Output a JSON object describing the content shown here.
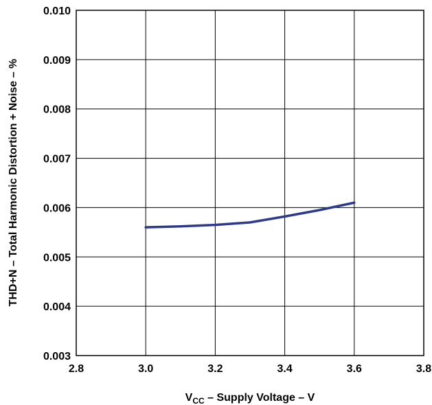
{
  "chart_data": {
    "type": "line",
    "title": "",
    "xlabel": {
      "main": "V",
      "sub": "CC",
      "rest": " – Supply Voltage – V"
    },
    "ylabel": "THD+N – Total Harmonic Distortion + Noise – %",
    "xlim": [
      2.8,
      3.8
    ],
    "ylim": [
      0.003,
      0.01
    ],
    "x_ticks": [
      "2.8",
      "3.0",
      "3.2",
      "3.4",
      "3.6",
      "3.8"
    ],
    "y_ticks": [
      "0.003",
      "0.004",
      "0.005",
      "0.006",
      "0.007",
      "0.008",
      "0.009",
      "0.010"
    ],
    "grid": true,
    "series": [
      {
        "color": "#2b3a8c",
        "x": [
          3.0,
          3.1,
          3.2,
          3.3,
          3.4,
          3.5,
          3.6
        ],
        "y": [
          0.0056,
          0.00562,
          0.00565,
          0.0057,
          0.00582,
          0.00595,
          0.0061
        ]
      }
    ]
  }
}
